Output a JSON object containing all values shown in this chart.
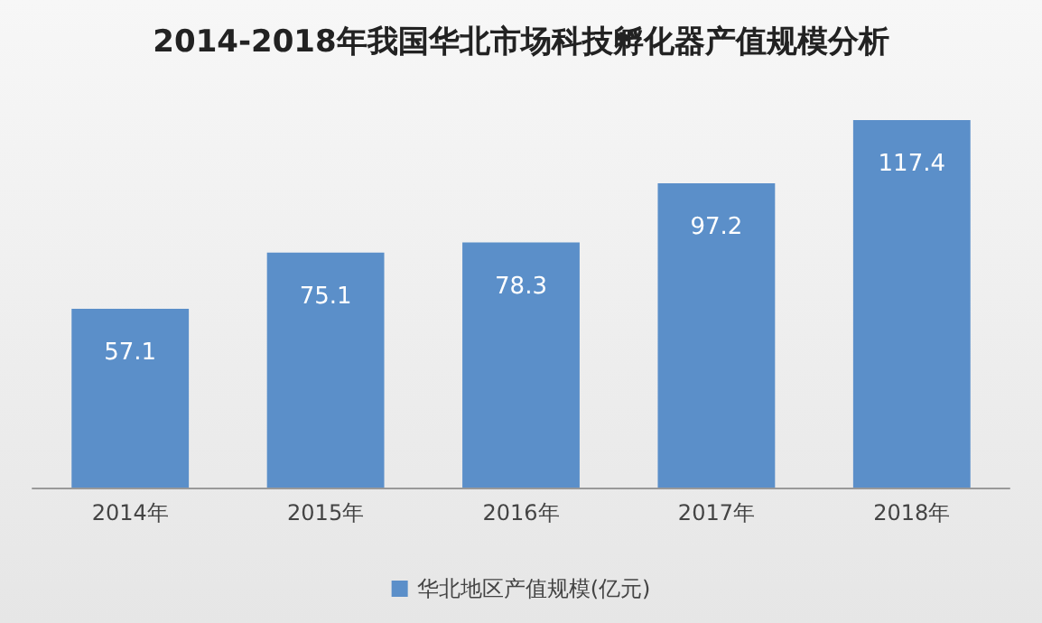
{
  "chart_data": {
    "type": "bar",
    "title": "2014-2018年我国华北市场科技孵化器产值规模分析",
    "categories": [
      "2014年",
      "2015年",
      "2016年",
      "2017年",
      "2018年"
    ],
    "series": [
      {
        "name": "华北地区产值规模(亿元)",
        "color": "#5b8fc9",
        "values": [
          57.1,
          75.1,
          78.3,
          97.2,
          117.4
        ]
      }
    ],
    "data_labels": true,
    "legend": "bottom",
    "grid": false
  }
}
